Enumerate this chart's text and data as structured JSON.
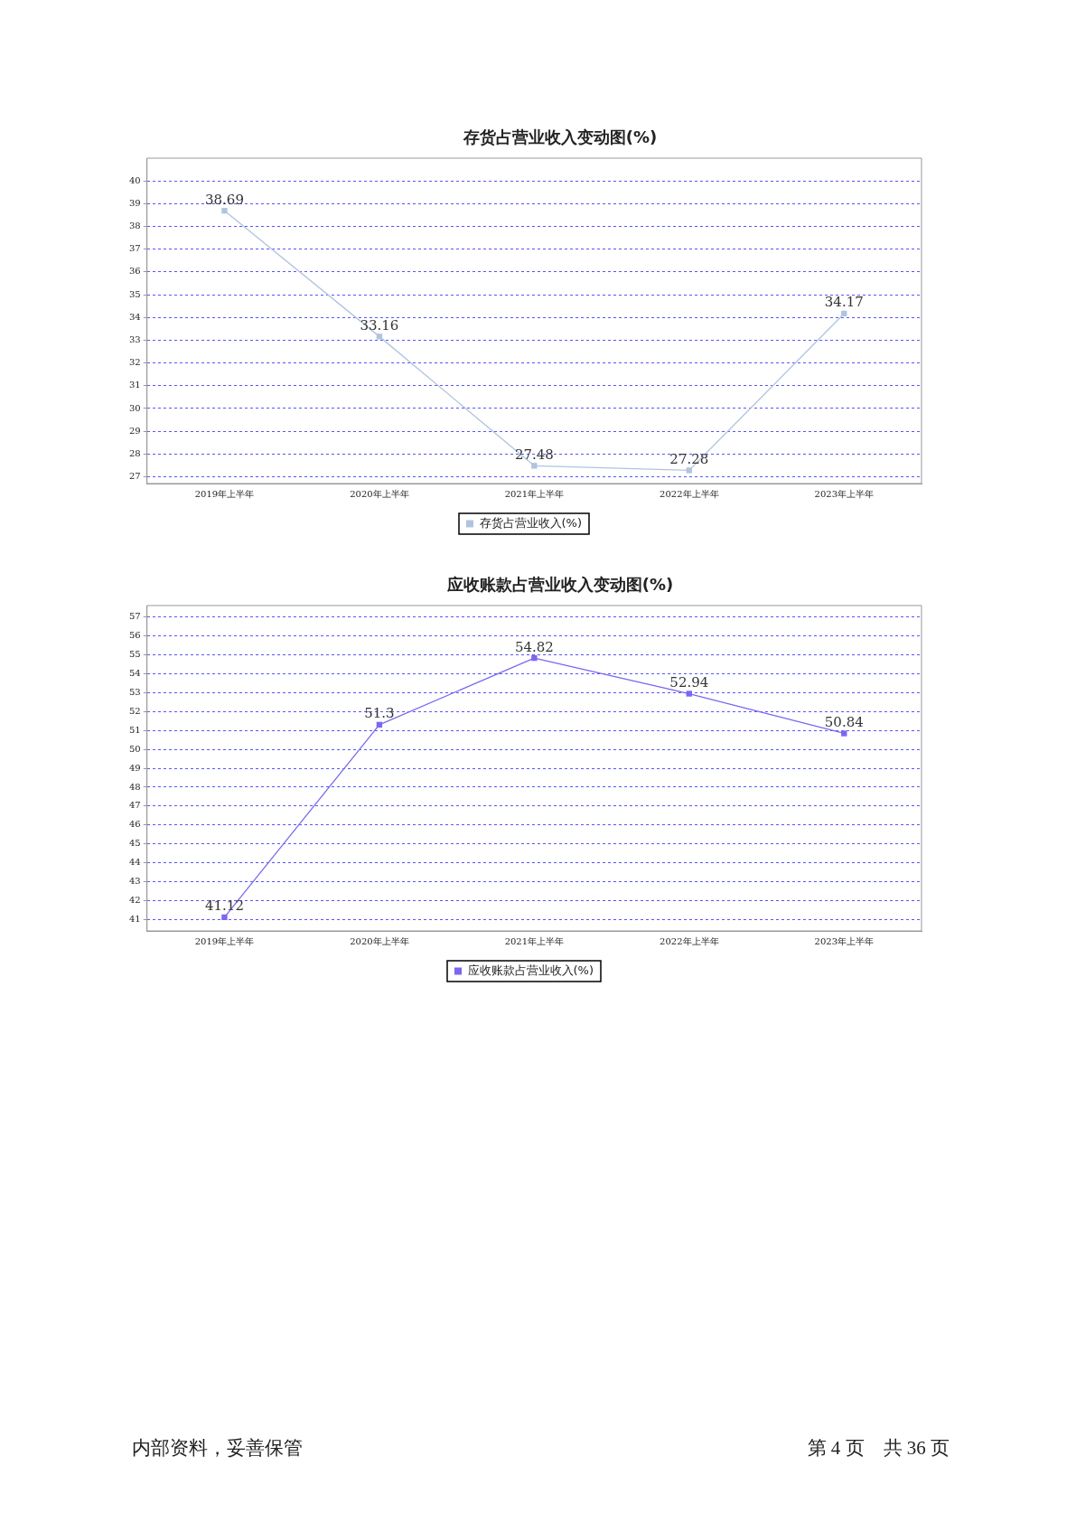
{
  "chart_data": [
    {
      "type": "line",
      "title": "存货占营业收入变动图(%)",
      "categories": [
        "2019年上半年",
        "2020年上半年",
        "2021年上半年",
        "2022年上半年",
        "2023年上半年"
      ],
      "series": [
        {
          "name": "存货占营业收入(%)",
          "color": "#b0c4de",
          "values": [
            38.69,
            33.16,
            27.48,
            27.28,
            34.17
          ]
        }
      ],
      "ylim": [
        26.7,
        41
      ],
      "yticks": [
        27,
        28,
        29,
        30,
        31,
        32,
        33,
        34,
        35,
        36,
        37,
        38,
        39,
        40
      ],
      "grid": "y",
      "legend": "bottom",
      "marker": "square",
      "line_style": "solid",
      "data_labels": true
    },
    {
      "type": "line",
      "title": "应收账款占营业收入变动图(%)",
      "categories": [
        "2019年上半年",
        "2020年上半年",
        "2021年上半年",
        "2022年上半年",
        "2023年上半年"
      ],
      "series": [
        {
          "name": "应收账款占营业收入(%)",
          "color": "#7b68ee",
          "values": [
            41.12,
            51.3,
            54.82,
            52.94,
            50.84
          ]
        }
      ],
      "ylim": [
        40.4,
        57.6
      ],
      "yticks": [
        41,
        42,
        43,
        44,
        45,
        46,
        47,
        48,
        49,
        50,
        51,
        52,
        53,
        54,
        55,
        56,
        57
      ],
      "grid": "y",
      "legend": "bottom",
      "marker": "square",
      "line_style": "solid",
      "data_labels": true,
      "annotations": [
        "内部资料，妥善保管",
        "第 4 页　共 36 页"
      ]
    }
  ]
}
